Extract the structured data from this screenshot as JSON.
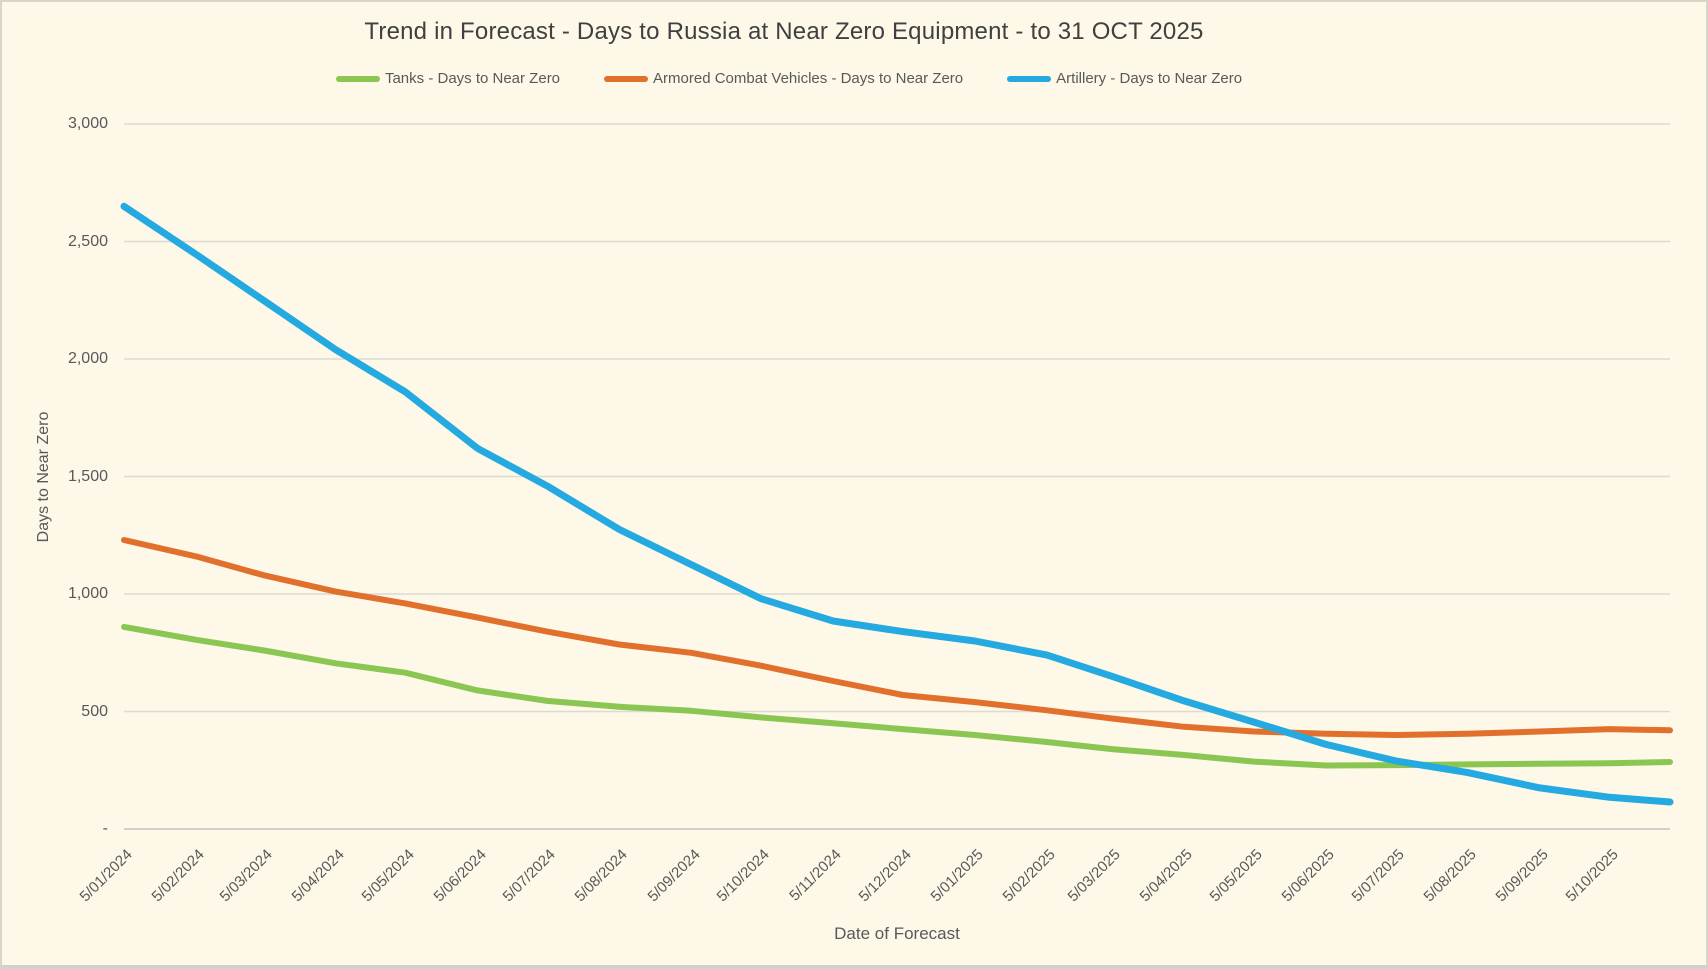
{
  "title": "Trend in Forecast - Days to Russia at Near Zero Equipment - to 31 OCT 2025",
  "axes": {
    "y_title": "Days to Near Zero",
    "x_title": "Date of Forecast",
    "y_ticks": [
      "3,000",
      "2,500",
      "2,000",
      "1,500",
      "1,000",
      "500",
      "-"
    ]
  },
  "colors": {
    "background": "#FDF8E8",
    "gridline": "#DCDAD2",
    "axis_line": "#D2D0C8",
    "title_text": "#404040",
    "label_text": "#595959",
    "tanks": "#8CC652",
    "acv": "#E1702D",
    "artillery": "#24A9E1"
  },
  "chart_data": {
    "type": "line",
    "title": "Trend in Forecast - Days to Russia at Near Zero Equipment - to 31 OCT 2025",
    "xlabel": "Date of Forecast",
    "ylabel": "Days to Near Zero",
    "ylim": [
      0,
      3000
    ],
    "grid": true,
    "legend_position": "top",
    "x_axis_note": "monthly forecast dates (5th of each month), axis extends to 31 OCT 2025",
    "categories": [
      "5/01/2024",
      "5/02/2024",
      "5/03/2024",
      "5/04/2024",
      "5/05/2024",
      "5/06/2024",
      "5/07/2024",
      "5/08/2024",
      "5/09/2024",
      "5/10/2024",
      "5/11/2024",
      "5/12/2024",
      "5/01/2025",
      "5/02/2025",
      "5/03/2025",
      "5/04/2025",
      "5/05/2025",
      "5/06/2025",
      "5/07/2025",
      "5/08/2025",
      "5/09/2025",
      "5/10/2025"
    ],
    "series": [
      {
        "key": "tanks",
        "name": "Tanks - Days to Near Zero",
        "color": "#8CC652",
        "values": [
          860,
          805,
          760,
          705,
          665,
          590,
          545,
          520,
          503,
          475,
          450,
          425,
          400,
          370,
          340,
          315,
          287,
          270,
          272,
          275,
          278,
          280
        ],
        "end_value": 285
      },
      {
        "key": "acv",
        "name": "Armored Combat Vehicles - Days to Near Zero",
        "color": "#E1702D",
        "values": [
          1230,
          1160,
          1080,
          1010,
          960,
          900,
          840,
          785,
          750,
          695,
          630,
          570,
          540,
          505,
          470,
          435,
          415,
          405,
          400,
          405,
          415,
          425
        ],
        "end_value": 420
      },
      {
        "key": "artillery",
        "name": "Artillery - Days to Near Zero",
        "color": "#24A9E1",
        "values": [
          2650,
          2445,
          2250,
          2040,
          1860,
          1620,
          1460,
          1275,
          1125,
          980,
          885,
          840,
          800,
          740,
          650,
          545,
          455,
          360,
          290,
          240,
          175,
          135
        ],
        "end_value": 115
      }
    ]
  }
}
